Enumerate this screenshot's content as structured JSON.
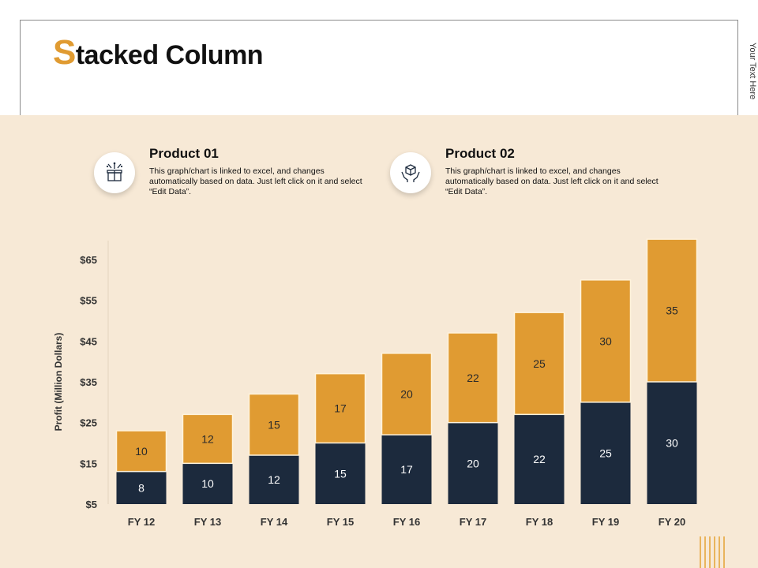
{
  "header": {
    "title_initial": "S",
    "title_rest": "tacked Column",
    "side_text": "Your Text Here"
  },
  "products": [
    {
      "title": "Product 01",
      "description": "This graph/chart is linked to excel, and changes automatically based on data. Just left click on it and select “Edit Data”.",
      "icon": "gift-box-icon"
    },
    {
      "title": "Product 02",
      "description": "This graph/chart is linked to excel, and changes automatically based on data. Just left click on it and select “Edit Data”.",
      "icon": "box-in-hands-icon"
    }
  ],
  "colors": {
    "accent": "#e09b32",
    "dark": "#1c2a3d",
    "panel": "#f7e9d6"
  },
  "chart_data": {
    "type": "bar",
    "stacked": true,
    "categories": [
      "FY 12",
      "FY 13",
      "FY 14",
      "FY 15",
      "FY 16",
      "FY 17",
      "FY 18",
      "FY 19",
      "FY 20"
    ],
    "series": [
      {
        "values": [
          8,
          10,
          12,
          15,
          17,
          20,
          22,
          25,
          30
        ],
        "color": "#1c2a3d"
      },
      {
        "values": [
          10,
          12,
          15,
          17,
          20,
          22,
          25,
          30,
          35
        ],
        "color": "#e09b32"
      }
    ],
    "ylabel": "Profit  (Million Dollars)",
    "y_ticks": [
      "$5",
      "$15",
      "$25",
      "$35",
      "$45",
      "$55",
      "$65"
    ],
    "ylim": [
      5,
      65
    ]
  }
}
